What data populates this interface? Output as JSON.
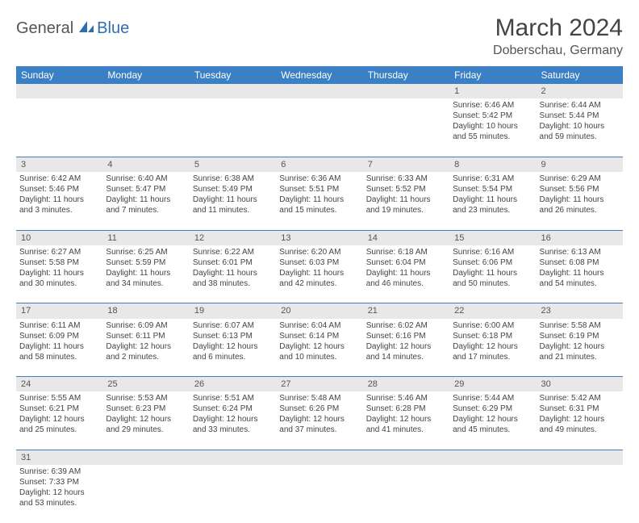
{
  "logo": {
    "text1": "General",
    "text2": "Blue"
  },
  "title": "March 2024",
  "location": "Doberschau, Germany",
  "colors": {
    "header_bg": "#3b7fc4",
    "header_text": "#ffffff",
    "daynum_bg": "#e8e8e8",
    "rule": "#3b7fc4",
    "logo_blue": "#2f6fb0"
  },
  "weekdays": [
    "Sunday",
    "Monday",
    "Tuesday",
    "Wednesday",
    "Thursday",
    "Friday",
    "Saturday"
  ],
  "weeks": [
    [
      null,
      null,
      null,
      null,
      null,
      {
        "d": "1",
        "sr": "6:46 AM",
        "ss": "5:42 PM",
        "dh": "10",
        "dm": "55"
      },
      {
        "d": "2",
        "sr": "6:44 AM",
        "ss": "5:44 PM",
        "dh": "10",
        "dm": "59"
      }
    ],
    [
      {
        "d": "3",
        "sr": "6:42 AM",
        "ss": "5:46 PM",
        "dh": "11",
        "dm": "3"
      },
      {
        "d": "4",
        "sr": "6:40 AM",
        "ss": "5:47 PM",
        "dh": "11",
        "dm": "7"
      },
      {
        "d": "5",
        "sr": "6:38 AM",
        "ss": "5:49 PM",
        "dh": "11",
        "dm": "11"
      },
      {
        "d": "6",
        "sr": "6:36 AM",
        "ss": "5:51 PM",
        "dh": "11",
        "dm": "15"
      },
      {
        "d": "7",
        "sr": "6:33 AM",
        "ss": "5:52 PM",
        "dh": "11",
        "dm": "19"
      },
      {
        "d": "8",
        "sr": "6:31 AM",
        "ss": "5:54 PM",
        "dh": "11",
        "dm": "23"
      },
      {
        "d": "9",
        "sr": "6:29 AM",
        "ss": "5:56 PM",
        "dh": "11",
        "dm": "26"
      }
    ],
    [
      {
        "d": "10",
        "sr": "6:27 AM",
        "ss": "5:58 PM",
        "dh": "11",
        "dm": "30"
      },
      {
        "d": "11",
        "sr": "6:25 AM",
        "ss": "5:59 PM",
        "dh": "11",
        "dm": "34"
      },
      {
        "d": "12",
        "sr": "6:22 AM",
        "ss": "6:01 PM",
        "dh": "11",
        "dm": "38"
      },
      {
        "d": "13",
        "sr": "6:20 AM",
        "ss": "6:03 PM",
        "dh": "11",
        "dm": "42"
      },
      {
        "d": "14",
        "sr": "6:18 AM",
        "ss": "6:04 PM",
        "dh": "11",
        "dm": "46"
      },
      {
        "d": "15",
        "sr": "6:16 AM",
        "ss": "6:06 PM",
        "dh": "11",
        "dm": "50"
      },
      {
        "d": "16",
        "sr": "6:13 AM",
        "ss": "6:08 PM",
        "dh": "11",
        "dm": "54"
      }
    ],
    [
      {
        "d": "17",
        "sr": "6:11 AM",
        "ss": "6:09 PM",
        "dh": "11",
        "dm": "58"
      },
      {
        "d": "18",
        "sr": "6:09 AM",
        "ss": "6:11 PM",
        "dh": "12",
        "dm": "2"
      },
      {
        "d": "19",
        "sr": "6:07 AM",
        "ss": "6:13 PM",
        "dh": "12",
        "dm": "6"
      },
      {
        "d": "20",
        "sr": "6:04 AM",
        "ss": "6:14 PM",
        "dh": "12",
        "dm": "10"
      },
      {
        "d": "21",
        "sr": "6:02 AM",
        "ss": "6:16 PM",
        "dh": "12",
        "dm": "14"
      },
      {
        "d": "22",
        "sr": "6:00 AM",
        "ss": "6:18 PM",
        "dh": "12",
        "dm": "17"
      },
      {
        "d": "23",
        "sr": "5:58 AM",
        "ss": "6:19 PM",
        "dh": "12",
        "dm": "21"
      }
    ],
    [
      {
        "d": "24",
        "sr": "5:55 AM",
        "ss": "6:21 PM",
        "dh": "12",
        "dm": "25"
      },
      {
        "d": "25",
        "sr": "5:53 AM",
        "ss": "6:23 PM",
        "dh": "12",
        "dm": "29"
      },
      {
        "d": "26",
        "sr": "5:51 AM",
        "ss": "6:24 PM",
        "dh": "12",
        "dm": "33"
      },
      {
        "d": "27",
        "sr": "5:48 AM",
        "ss": "6:26 PM",
        "dh": "12",
        "dm": "37"
      },
      {
        "d": "28",
        "sr": "5:46 AM",
        "ss": "6:28 PM",
        "dh": "12",
        "dm": "41"
      },
      {
        "d": "29",
        "sr": "5:44 AM",
        "ss": "6:29 PM",
        "dh": "12",
        "dm": "45"
      },
      {
        "d": "30",
        "sr": "5:42 AM",
        "ss": "6:31 PM",
        "dh": "12",
        "dm": "49"
      }
    ],
    [
      {
        "d": "31",
        "sr": "6:39 AM",
        "ss": "7:33 PM",
        "dh": "12",
        "dm": "53"
      },
      null,
      null,
      null,
      null,
      null,
      null
    ]
  ],
  "labels": {
    "sunrise": "Sunrise:",
    "sunset": "Sunset:",
    "daylight": "Daylight:",
    "hours": "hours",
    "and": "and",
    "minutes": "minutes."
  }
}
